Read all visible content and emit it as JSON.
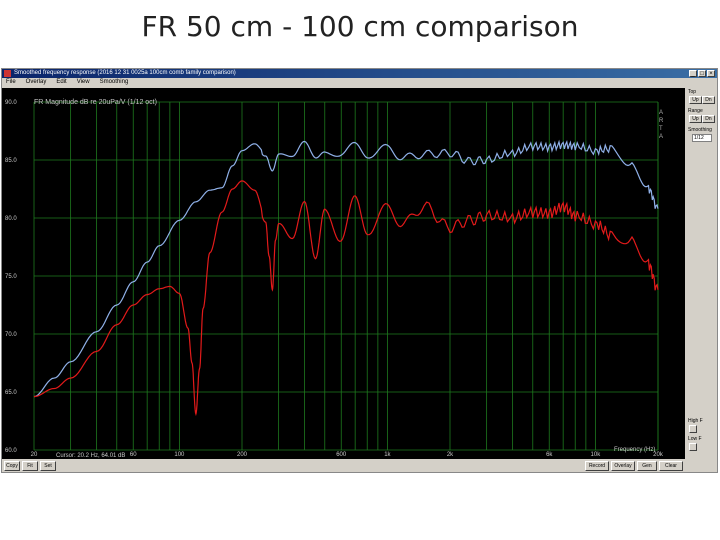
{
  "slide": {
    "title": "FR  50 cm - 100 cm  comparison"
  },
  "window": {
    "title": "Smoothed frequency response (2016 12 31 0025a 100cm comb family comparison)",
    "buttons": [
      "_",
      "□",
      "×"
    ]
  },
  "menu": [
    "File",
    "Overlay",
    "Edit",
    "View",
    "Smoothing"
  ],
  "plot_header": "FR Magnitude dB re 20uPa/V (1/12 oct)",
  "aria_label": [
    "A",
    "R",
    "T",
    "A"
  ],
  "cursor_readout": "Cursor: 20.2 Hz, 64.01 dB",
  "side_panel": {
    "top_label": "Top",
    "top_buttons": [
      "Up",
      "Dn"
    ],
    "range_label": "Range",
    "range_buttons": [
      "Up",
      "Dn"
    ],
    "smoothing_label": "Smoothing",
    "smoothing_value": "1/12",
    "highf_label": "High F",
    "lowf_label": "Low F"
  },
  "bottom_left_buttons": [
    "Copy",
    "Fit",
    "Set"
  ],
  "bottom_right_buttons": [
    "Record",
    "Overlay",
    "Gen",
    "Clear"
  ],
  "colors": {
    "background": "#000000",
    "grid": "#1e7a1e",
    "series_blue": "#8fb0e8",
    "series_red": "#e21a1a",
    "axis_text": "#c8c8c8"
  },
  "chart_data": {
    "type": "line",
    "x_scale": "log",
    "xlim": [
      20,
      20000
    ],
    "ylim": [
      60,
      90
    ],
    "xlabel": "Frequency (Hz)",
    "ylabel": "",
    "x_ticks": [
      20,
      60,
      100,
      200,
      600,
      1000,
      2000,
      6000,
      10000,
      20000
    ],
    "x_tick_labels": [
      "20",
      "60",
      "100",
      "200",
      "600",
      "1k",
      "2k",
      "6k",
      "10k",
      "20k"
    ],
    "y_ticks": [
      60,
      65,
      70,
      75,
      80,
      85,
      90
    ],
    "y_tick_labels": [
      "60.0",
      "65.0",
      "70.0",
      "75.0",
      "80.0",
      "85.0",
      "90.0"
    ],
    "series": [
      {
        "color": "blue",
        "x": [
          20,
          25,
          30,
          40,
          50,
          60,
          70,
          80,
          100,
          120,
          140,
          160,
          180,
          200,
          230,
          260,
          280,
          300,
          350,
          400,
          450,
          500,
          600,
          700,
          800,
          1000,
          1200,
          1500,
          2000,
          2500,
          3000,
          4000,
          5000,
          6000,
          7000,
          8000,
          10000,
          12000,
          15000,
          18000,
          20000
        ],
        "y": [
          64.6,
          66.2,
          67.6,
          70.2,
          72.5,
          74.5,
          76.2,
          77.6,
          79.8,
          81.4,
          82.4,
          82.6,
          84.5,
          85.8,
          86.4,
          85.6,
          84.2,
          85.5,
          85.0,
          86.3,
          85.2,
          86.0,
          85.4,
          86.2,
          85.5,
          86.0,
          85.2,
          85.5,
          85.6,
          84.9,
          85.0,
          85.6,
          86.2,
          86.1,
          86.3,
          86.2,
          85.8,
          86.0,
          84.5,
          82.5,
          80.8
        ]
      },
      {
        "color": "red",
        "x": [
          20,
          25,
          30,
          40,
          50,
          60,
          70,
          80,
          90,
          100,
          110,
          115,
          120,
          125,
          130,
          140,
          160,
          180,
          200,
          230,
          260,
          270,
          280,
          290,
          300,
          350,
          400,
          450,
          500,
          600,
          700,
          800,
          1000,
          1200,
          1500,
          2000,
          2500,
          3000,
          4000,
          5000,
          6000,
          7000,
          8000,
          10000,
          12000,
          15000,
          18000,
          20000
        ],
        "y": [
          64.6,
          65.3,
          66.2,
          68.5,
          70.8,
          72.5,
          73.4,
          73.9,
          74.1,
          73.5,
          70.5,
          67.5,
          63.1,
          67.0,
          72.2,
          77.0,
          80.5,
          82.5,
          83.2,
          82.4,
          80.0,
          77.0,
          74.0,
          78.2,
          79.5,
          77.8,
          81.0,
          76.5,
          81.2,
          78.0,
          81.5,
          79.0,
          80.8,
          79.5,
          81.0,
          79.2,
          79.8,
          80.2,
          80.0,
          80.5,
          80.4,
          81.0,
          80.2,
          79.5,
          78.5,
          78.0,
          76.0,
          73.8
        ]
      }
    ]
  }
}
